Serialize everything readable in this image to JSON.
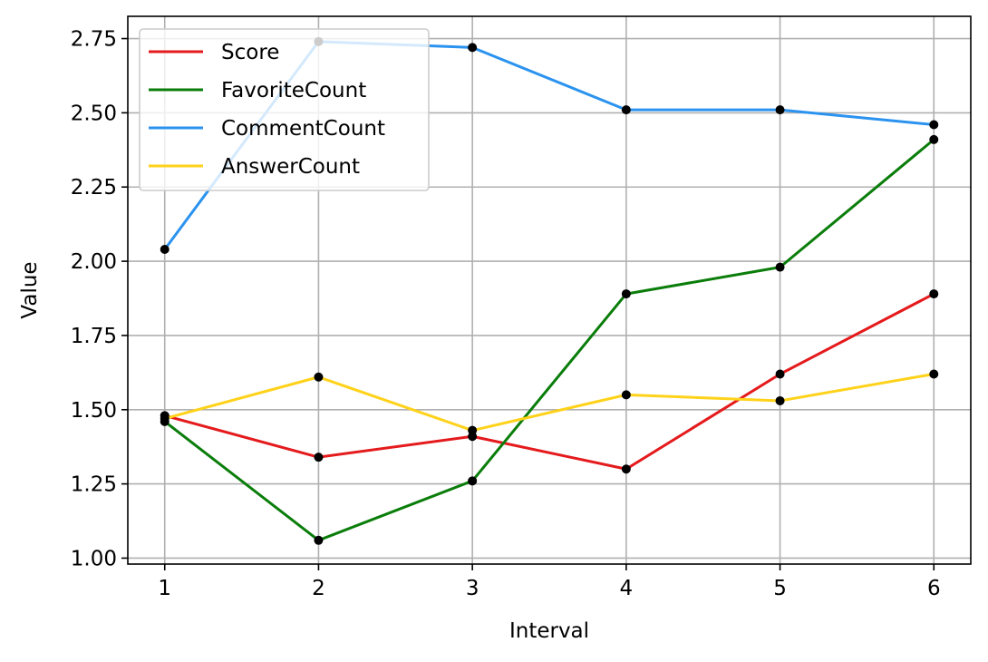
{
  "chart_data": {
    "type": "line",
    "title": "",
    "xlabel": "Interval",
    "ylabel": "Value",
    "x": [
      1,
      2,
      3,
      4,
      5,
      6
    ],
    "xlim": [
      0.76,
      6.24
    ],
    "ylim": [
      0.98,
      2.825
    ],
    "xticks": [
      1,
      2,
      3,
      4,
      5,
      6
    ],
    "yticks": [
      1.0,
      1.25,
      1.5,
      1.75,
      2.0,
      2.25,
      2.5,
      2.75
    ],
    "ytick_labels": [
      "1.00",
      "1.25",
      "1.50",
      "1.75",
      "2.00",
      "2.25",
      "2.50",
      "2.75"
    ],
    "xtick_labels": [
      "1",
      "2",
      "3",
      "4",
      "5",
      "6"
    ],
    "grid": true,
    "legend_position": "top-left",
    "marker_color": "#000000",
    "series": [
      {
        "name": "Score",
        "color": "#e41a1c",
        "values": [
          1.48,
          1.34,
          1.41,
          1.3,
          1.62,
          1.89
        ]
      },
      {
        "name": "FavoriteCount",
        "color": "#0a7d0a",
        "values": [
          1.46,
          1.06,
          1.26,
          1.89,
          1.98,
          2.41
        ]
      },
      {
        "name": "CommentCount",
        "color": "#2b93ef",
        "values": [
          2.04,
          2.74,
          2.72,
          2.51,
          2.51,
          2.46
        ]
      },
      {
        "name": "AnswerCount",
        "color": "#ffd21a",
        "values": [
          1.47,
          1.61,
          1.43,
          1.55,
          1.53,
          1.62
        ]
      }
    ]
  }
}
